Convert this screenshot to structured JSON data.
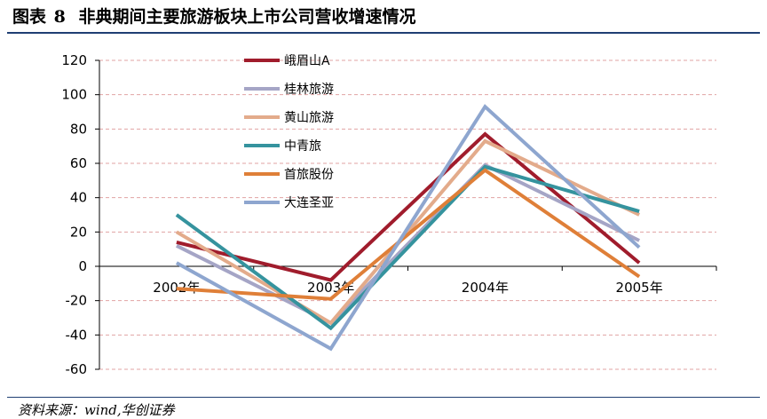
{
  "header": {
    "title_prefix": "图表",
    "title_number": "8",
    "title_text": "非典期间主要旅游板块上市公司营收增速情况"
  },
  "footer": {
    "source": "资料来源：wind,华创证券"
  },
  "chart_data": {
    "type": "line",
    "categories": [
      "2002年",
      "2003年",
      "2004年",
      "2005年"
    ],
    "ylim": [
      -60,
      120
    ],
    "yticks": [
      120,
      100,
      80,
      60,
      40,
      20,
      0,
      -20,
      -40,
      -60
    ],
    "grid": true,
    "legend_position": "top-left",
    "series": [
      {
        "name": "峨眉山A",
        "color": "#a01c2c",
        "values": [
          14,
          -8,
          77,
          2
        ]
      },
      {
        "name": "桂林旅游",
        "color": "#a5a5c6",
        "values": [
          12,
          -33,
          59,
          15
        ]
      },
      {
        "name": "黄山旅游",
        "color": "#e3ab8b",
        "values": [
          20,
          -33,
          73,
          30
        ]
      },
      {
        "name": "中青旅",
        "color": "#35939e",
        "values": [
          30,
          -36,
          58,
          32
        ]
      },
      {
        "name": "首旅股份",
        "color": "#df7f38",
        "values": [
          -13,
          -19,
          56,
          -6
        ]
      },
      {
        "name": "大连圣亚",
        "color": "#8ea6cf",
        "values": [
          2,
          -48,
          93,
          11
        ]
      }
    ]
  }
}
